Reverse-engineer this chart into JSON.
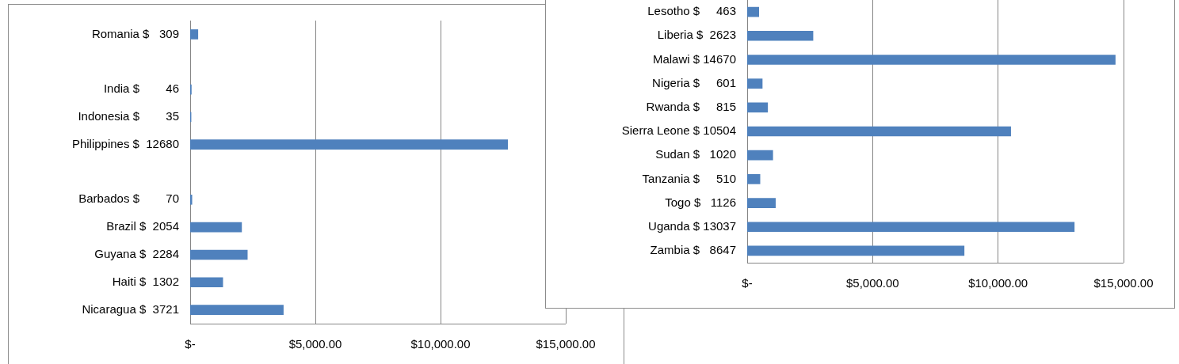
{
  "chart_data": [
    {
      "type": "bar",
      "orientation": "horizontal",
      "categories": [
        "Romania $   309",
        null,
        "India $        46",
        "Indonesia $        35",
        "Philippines $  12680",
        null,
        "Barbados $        70",
        "Brazil $  2054",
        "Guyana $  2284",
        "Haiti $  1302",
        "Nicaragua $  3721"
      ],
      "values": [
        309,
        null,
        46,
        35,
        12680,
        null,
        70,
        2054,
        2284,
        1302,
        3721
      ],
      "color": "#4f81bd",
      "xlim": [
        0,
        15000
      ],
      "xticks": [
        {
          "value": 0,
          "label": "$-"
        },
        {
          "value": 5000,
          "label": "$5,000.00"
        },
        {
          "value": 10000,
          "label": "$10,000.00"
        },
        {
          "value": 15000,
          "label": "$15,000.00"
        }
      ],
      "grid": "x"
    },
    {
      "type": "bar",
      "orientation": "horizontal",
      "categories": [
        "Lesotho $     463",
        "Liberia $  2623",
        "Malawi $ 14670",
        "Nigeria $     601",
        "Rwanda $     815",
        "Sierra Leone $ 10504",
        "Sudan $   1020",
        "Tanzania $     510",
        "Togo $   1126",
        "Uganda $ 13037",
        "Zambia $   8647"
      ],
      "values": [
        463,
        2623,
        14670,
        601,
        815,
        10504,
        1020,
        510,
        1126,
        13037,
        8647
      ],
      "color": "#4f81bd",
      "xlim": [
        0,
        15000
      ],
      "xticks": [
        {
          "value": 0,
          "label": "$-"
        },
        {
          "value": 5000,
          "label": "$5,000.00"
        },
        {
          "value": 10000,
          "label": "$10,000.00"
        },
        {
          "value": 15000,
          "label": "$15,000.00"
        }
      ],
      "grid": "x"
    }
  ]
}
